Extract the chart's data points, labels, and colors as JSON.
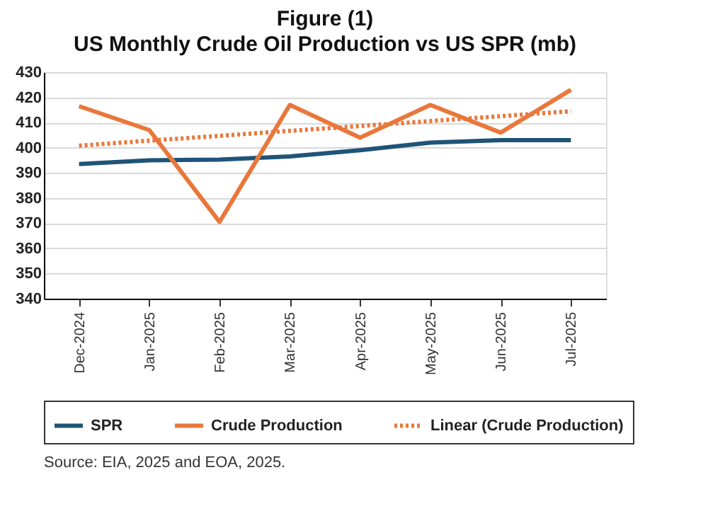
{
  "chart_data": {
    "type": "line",
    "title": "Figure (1)",
    "subtitle": "US Monthly Crude Oil Production vs US SPR (mb)",
    "categories": [
      "Dec-2024",
      "Jan-2025",
      "Feb-2025",
      "Mar-2025",
      "Apr-2025",
      "May-2025",
      "Jun-2025",
      "Jul-2025"
    ],
    "series": [
      {
        "name": "SPR",
        "color": "#1f5478",
        "values": [
          393.5,
          395,
          395.3,
          396.5,
          399,
          402,
          403,
          403
        ]
      },
      {
        "name": "Crude Production",
        "color": "#e9773b",
        "values": [
          416.5,
          407,
          370.5,
          417,
          404,
          417,
          406,
          423
        ]
      },
      {
        "name": "Linear (Crude Production)",
        "color": "#e9773b",
        "line_style": "dotted",
        "values": [
          400.8,
          402.8,
          404.7,
          406.7,
          408.6,
          410.6,
          412.5,
          414.5
        ]
      }
    ],
    "ylim": [
      340,
      430
    ],
    "yticks": [
      340,
      350,
      360,
      370,
      380,
      390,
      400,
      410,
      420,
      430
    ],
    "grid": "y",
    "legend": "bottom",
    "marker": "none",
    "line_style": "solid",
    "annotations": [
      "Source: EIA, 2025 and EOA, 2025."
    ]
  }
}
